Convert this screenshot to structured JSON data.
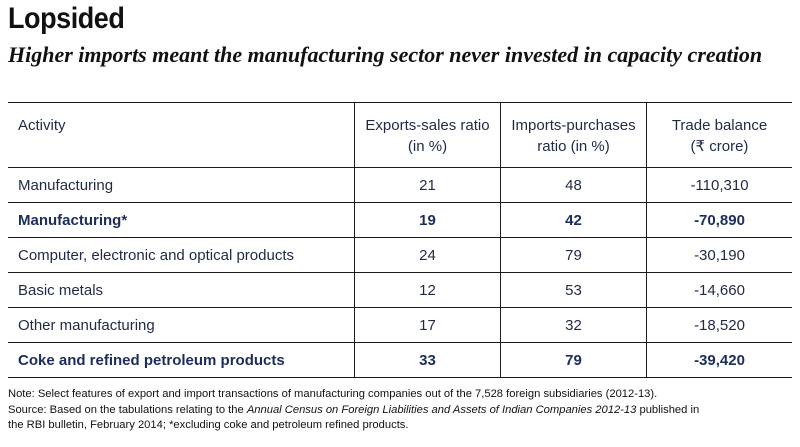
{
  "title": "Lopsided",
  "subtitle": "Higher imports meant the manufacturing sector never invested in capacity creation",
  "table": {
    "headers": [
      [
        "Activity"
      ],
      [
        "Exports-sales ratio",
        "(in %)"
      ],
      [
        "Imports-purchases",
        "ratio (in %)"
      ],
      [
        "Trade balance",
        "(₹ crore)"
      ]
    ],
    "rows": [
      {
        "activity": "Manufacturing",
        "exports": "21",
        "imports": "48",
        "balance": "-110,310",
        "bold": false
      },
      {
        "activity": "Manufacturing*",
        "exports": "19",
        "imports": "42",
        "balance": "-70,890",
        "bold": true
      },
      {
        "activity": "Computer, electronic and optical products",
        "exports": "24",
        "imports": "79",
        "balance": "-30,190",
        "bold": false
      },
      {
        "activity": "Basic metals",
        "exports": "12",
        "imports": "53",
        "balance": "-14,660",
        "bold": false
      },
      {
        "activity": "Other manufacturing",
        "exports": "17",
        "imports": "32",
        "balance": "-18,520",
        "bold": false
      },
      {
        "activity": "Coke and refined petroleum products",
        "exports": "33",
        "imports": "79",
        "balance": "-39,420",
        "bold": true
      }
    ]
  },
  "notes": {
    "note": "Note: Select features of export and import transactions of manufacturing companies out of the 7,528 foreign subsidiaries (2012-13).",
    "source_prefix": "Source: Based on the tabulations relating to the ",
    "source_italic": "Annual Census on Foreign Liabilities and Assets of Indian Companies 2012-13",
    "source_suffix": " published in",
    "source_line2": "the RBI bulletin, February 2014; *excluding coke and petroleum refined products."
  },
  "colors": {
    "text": "#1f2a44",
    "bold_text": "#1c2d5c",
    "rule": "#1a1a1a"
  }
}
